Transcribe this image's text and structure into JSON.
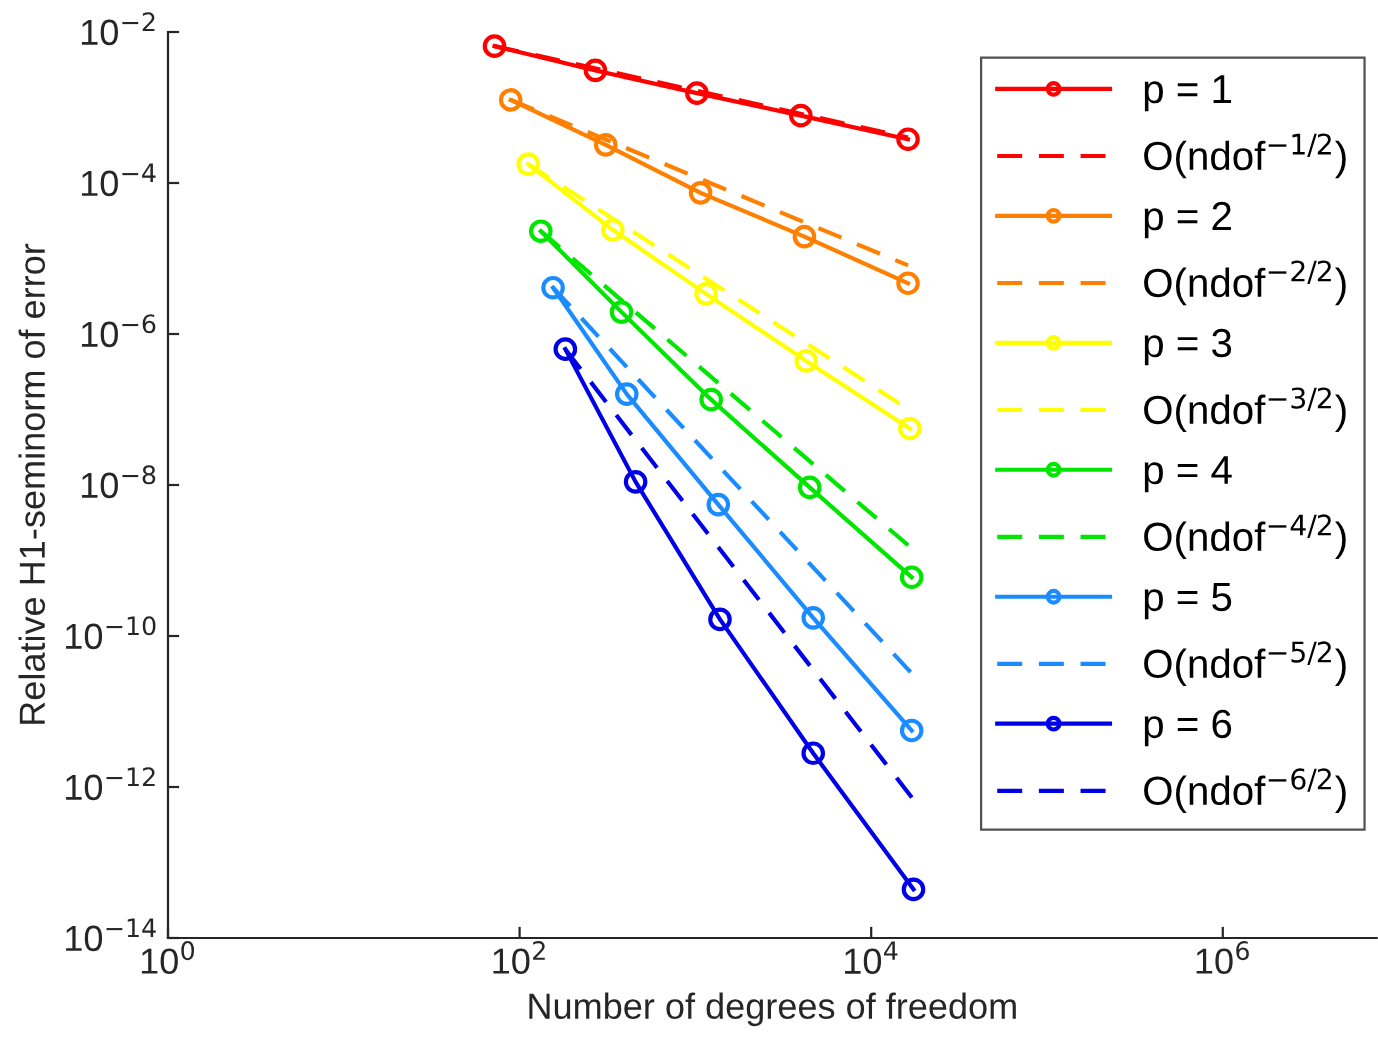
{
  "chart_data": {
    "type": "line",
    "xlabel": "Number of degrees of freedom",
    "ylabel": "Relative H1-seminorm of error",
    "log": "xy",
    "grid": false,
    "legend": "top right",
    "xlim": [
      1,
      7500000
    ],
    "ylim": [
      1e-14,
      0.01
    ],
    "xticks": [
      {
        "value": 1,
        "label": "10$^{0}$"
      },
      {
        "value": 100,
        "label": "10$^{2}$"
      },
      {
        "value": 10000,
        "label": "10$^{4}$"
      },
      {
        "value": 1000000,
        "label": "10$^{6}$"
      }
    ],
    "yticks": [
      {
        "value": 1e-14,
        "label": "10$^{−14}$"
      },
      {
        "value": 1e-12,
        "label": "10$^{−12}$"
      },
      {
        "value": 1e-10,
        "label": "10$^{−10}$"
      },
      {
        "value": 1e-08,
        "label": "10$^{−8}$"
      },
      {
        "value": 1e-06,
        "label": "10$^{−6}$"
      },
      {
        "value": 0.0001,
        "label": "10$^{−4}$"
      },
      {
        "value": 0.01,
        "label": "10$^{−2}$"
      }
    ],
    "series": [
      {
        "name": "p = 1",
        "color": "#ff0000",
        "marker": "circle",
        "line_style": "solid",
        "x": [
          72,
          270,
          1020,
          3980,
          16200
        ],
        "values": [
          0.0065,
          0.0031,
          0.00155,
          0.00078,
          0.00038
        ]
      },
      {
        "name": "O(ndof$^{−1/2}$)",
        "color": "#ff0000",
        "marker": "none",
        "line_style": "dashed",
        "x": [
          72,
          16200
        ],
        "values": [
          0.0065,
          0.0004
        ]
      },
      {
        "name": "p = 2",
        "color": "#ff8000",
        "marker": "circle",
        "line_style": "solid",
        "x": [
          89,
          309,
          1070,
          4170,
          16200
        ],
        "values": [
          0.00126,
          0.00032,
          7.4e-05,
          1.95e-05,
          4.7e-06
        ]
      },
      {
        "name": "O(ndof$^{−2/2}$)",
        "color": "#ff8000",
        "marker": "none",
        "line_style": "dashed",
        "x": [
          89,
          16200
        ],
        "values": [
          0.00126,
          8.1e-06
        ]
      },
      {
        "name": "p = 3",
        "color": "#ffff00",
        "marker": "circle",
        "line_style": "solid",
        "x": [
          112,
          339,
          1150,
          4270,
          16600
        ],
        "values": [
          0.000178,
          2.4e-05,
          3.4e-06,
          4.4e-07,
          5.6e-08
        ]
      },
      {
        "name": "O(ndof$^{−3/2}$)",
        "color": "#ffff00",
        "marker": "none",
        "line_style": "dashed",
        "x": [
          112,
          16600
        ],
        "values": [
          0.000178,
          9.8e-08
        ]
      },
      {
        "name": "p = 4",
        "color": "#00e600",
        "marker": "circle",
        "line_style": "solid",
        "x": [
          132,
          380,
          1230,
          4470,
          17000
        ],
        "values": [
          2.3e-05,
          1.95e-06,
          1.35e-07,
          9.3e-09,
          6e-10
        ]
      },
      {
        "name": "O(ndof$^{−4/2}$)",
        "color": "#00e600",
        "marker": "none",
        "line_style": "dashed",
        "x": [
          132,
          17000
        ],
        "values": [
          2.3e-05,
          1.45e-09
        ]
      },
      {
        "name": "p = 5",
        "color": "#1a8cff",
        "marker": "circle",
        "line_style": "solid",
        "x": [
          155,
          407,
          1350,
          4680,
          17000
        ],
        "values": [
          4.1e-06,
          1.6e-07,
          5.5e-09,
          1.74e-10,
          5.6e-12
        ]
      },
      {
        "name": "O(ndof$^{−5/2}$)",
        "color": "#1a8cff",
        "marker": "none",
        "line_style": "dashed",
        "x": [
          155,
          17000
        ],
        "values": [
          4.1e-06,
          3.2e-11
        ]
      },
      {
        "name": "p = 6",
        "color": "#0000e6",
        "marker": "circle",
        "line_style": "solid",
        "x": [
          182,
          457,
          1380,
          4680,
          17400
        ],
        "values": [
          6.3e-07,
          1.1e-08,
          1.66e-10,
          2.8e-12,
          4.4e-14
        ]
      },
      {
        "name": "O(ndof$^{−6/2}$)",
        "color": "#0000e6",
        "marker": "none",
        "line_style": "dashed",
        "x": [
          182,
          17400
        ],
        "values": [
          6.3e-07,
          6.8e-13
        ]
      }
    ]
  }
}
